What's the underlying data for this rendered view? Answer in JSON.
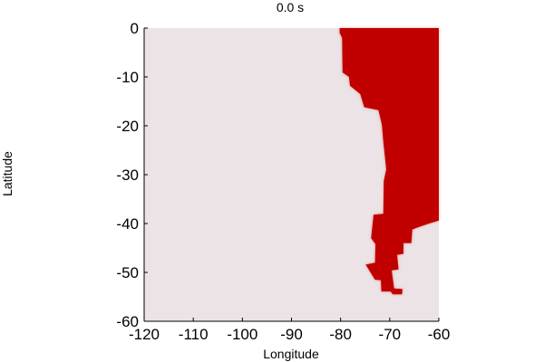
{
  "chart_data": {
    "type": "heatmap",
    "title": "0.0 s",
    "xlabel": "Longitude",
    "ylabel": "Latitude",
    "xlim": [
      -120,
      -60
    ],
    "ylim": [
      -60,
      0
    ],
    "x_ticks": [
      -120,
      -110,
      -100,
      -90,
      -80,
      -70,
      -60
    ],
    "y_ticks": [
      0,
      -10,
      -20,
      -30,
      -40,
      -50,
      -60
    ],
    "x_tick_labels": [
      "-120",
      "-110",
      "-100",
      "-90",
      "-80",
      "-70",
      "-60"
    ],
    "y_tick_labels": [
      "0",
      "-10",
      "-20",
      "-30",
      "-40",
      "-50",
      "-60"
    ],
    "background_value_color": "#ebe3e6",
    "field_color": "#c00000",
    "field_region": {
      "description_units": "longitude/latitude degrees",
      "outline": [
        [
          -80.2,
          0
        ],
        [
          -60,
          0
        ],
        [
          -60,
          -39.4
        ],
        [
          -62,
          -40
        ],
        [
          -64,
          -40.7
        ],
        [
          -65.4,
          -41.2
        ],
        [
          -65.6,
          -44
        ],
        [
          -67.2,
          -44
        ],
        [
          -67.2,
          -46.2
        ],
        [
          -68.5,
          -46.4
        ],
        [
          -68.2,
          -49.4
        ],
        [
          -69.6,
          -49.6
        ],
        [
          -69.1,
          -53.3
        ],
        [
          -67.4,
          -53.4
        ],
        [
          -67.5,
          -54.5
        ],
        [
          -69.4,
          -54.5
        ],
        [
          -69.8,
          -53.9
        ],
        [
          -71.7,
          -53.9
        ],
        [
          -71.8,
          -51.6
        ],
        [
          -73.0,
          -51.5
        ],
        [
          -74.9,
          -48.4
        ],
        [
          -73.0,
          -48.0
        ],
        [
          -72.9,
          -44.2
        ],
        [
          -73.8,
          -43.0
        ],
        [
          -73.3,
          -38.2
        ],
        [
          -71.3,
          -38.0
        ],
        [
          -71.2,
          -31.3
        ],
        [
          -70.7,
          -28.9
        ],
        [
          -71.3,
          -23.3
        ],
        [
          -71.6,
          -19.8
        ],
        [
          -72.3,
          -16.8
        ],
        [
          -75.2,
          -16.2
        ],
        [
          -76.0,
          -13.5
        ],
        [
          -78.1,
          -11.8
        ],
        [
          -78.3,
          -10.0
        ],
        [
          -79.6,
          -9.1
        ],
        [
          -79.7,
          -2.0
        ],
        [
          -80.2,
          -1.0
        ]
      ]
    }
  }
}
